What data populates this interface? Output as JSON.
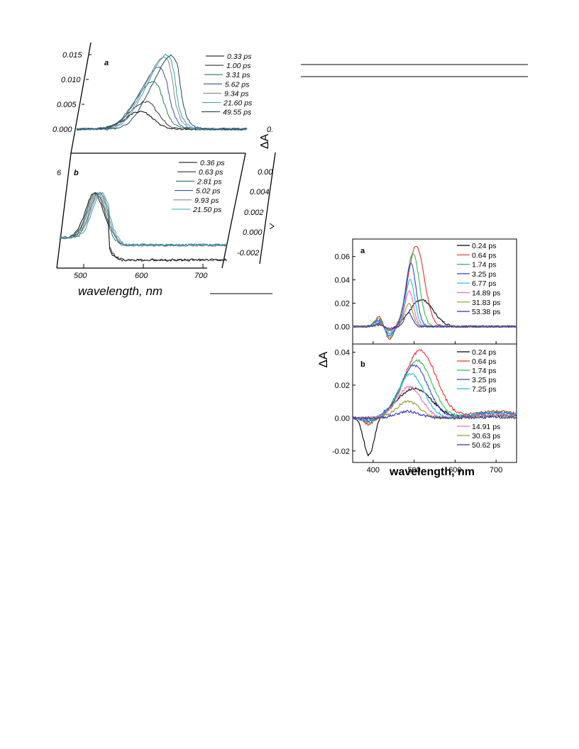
{
  "left_figure": {
    "xlabel": "wavelength, nm",
    "x_ticks": [
      "500",
      "600",
      "700"
    ],
    "panel_a": {
      "label": "a",
      "y_ticks": [
        "0.015",
        "0.010",
        "0.005",
        "0.000"
      ],
      "legend": [
        "0.33 ps",
        "1.00 ps",
        "3.31 ps",
        "5.62 ps",
        "9.34 ps",
        "21.60 ps",
        "49.55 ps"
      ]
    },
    "panel_b": {
      "label": "b",
      "y_ticks_partial": [
        "6"
      ],
      "legend": [
        "0.36 ps",
        "0.63 ps",
        "2.81 ps",
        "5.02 ps",
        "9.93 ps",
        "21.50 ps"
      ]
    },
    "right_partial": {
      "ylabel": "ΔA",
      "y_ticks": [
        "0.",
        "0.00",
        "0.004",
        "0.002",
        "0.000",
        "-0.002"
      ]
    }
  },
  "chart_data": [
    {
      "type": "line",
      "panel": "a",
      "xlabel": "wavelength, nm",
      "ylabel": "ΔA",
      "xlim": [
        350,
        750
      ],
      "ylim": [
        -0.015,
        0.075
      ],
      "x_ticks": [
        400,
        500,
        600,
        700
      ],
      "y_ticks": [
        0.0,
        0.02,
        0.04,
        0.06
      ],
      "y_tick_labels": [
        "0.00",
        "0.02",
        "0.04",
        "0.06"
      ],
      "legend_position": "top-right",
      "series": [
        {
          "name": "0.24 ps",
          "color": "#000000",
          "peak_x": 518,
          "peak_y": 0.023,
          "width": 40,
          "uv": 0.004
        },
        {
          "name": "0.64 ps",
          "color": "#e53030",
          "peak_x": 505,
          "peak_y": 0.069,
          "width": 28,
          "uv": 0.012
        },
        {
          "name": "1.74 ps",
          "color": "#33bb55",
          "peak_x": 497,
          "peak_y": 0.063,
          "width": 22,
          "uv": 0.01
        },
        {
          "name": "3.25 ps",
          "color": "#3344cc",
          "peak_x": 492,
          "peak_y": 0.054,
          "width": 18,
          "uv": 0.008
        },
        {
          "name": "6.77 ps",
          "color": "#22bbdd",
          "peak_x": 490,
          "peak_y": 0.04,
          "width": 16,
          "uv": 0.006
        },
        {
          "name": "14.89 ps",
          "color": "#ee66cc",
          "peak_x": 488,
          "peak_y": 0.03,
          "width": 15,
          "uv": 0.004
        },
        {
          "name": "31.83 ps",
          "color": "#999933",
          "peak_x": 487,
          "peak_y": 0.02,
          "width": 14,
          "uv": 0.003
        },
        {
          "name": "53.38 ps",
          "color": "#3333aa",
          "peak_x": 486,
          "peak_y": 0.012,
          "width": 13,
          "uv": 0.002
        }
      ]
    },
    {
      "type": "line",
      "panel": "b",
      "xlabel": "wavelength, nm",
      "ylabel": "ΔA",
      "xlim": [
        350,
        750
      ],
      "ylim": [
        -0.027,
        0.045
      ],
      "x_ticks": [
        400,
        500,
        600,
        700
      ],
      "x_tick_labels": [
        "400",
        "500",
        "600",
        "700"
      ],
      "y_ticks": [
        -0.02,
        0.0,
        0.02,
        0.04
      ],
      "y_tick_labels": [
        "-0.02",
        "0.00",
        "0.02",
        "0.04"
      ],
      "legend_position": "right",
      "series": [
        {
          "name": "0.24 ps",
          "color": "#000000",
          "peak_x": 500,
          "peak_y": 0.018,
          "width": 60,
          "dip": -0.023
        },
        {
          "name": "0.64 ps",
          "color": "#e53030",
          "peak_x": 515,
          "peak_y": 0.041,
          "width": 55,
          "dip": -0.004
        },
        {
          "name": "1.74 ps",
          "color": "#33bb55",
          "peak_x": 508,
          "peak_y": 0.035,
          "width": 50,
          "dip": -0.003
        },
        {
          "name": "3.25 ps",
          "color": "#3344cc",
          "peak_x": 500,
          "peak_y": 0.032,
          "width": 48,
          "dip": -0.002
        },
        {
          "name": "7.25 ps",
          "color": "#22bbdd",
          "peak_x": 492,
          "peak_y": 0.027,
          "width": 45,
          "dip": -0.001
        },
        {
          "name": "14.91 ps",
          "color": "#ee66cc",
          "peak_x": 488,
          "peak_y": 0.019,
          "width": 42,
          "dip": 0.0
        },
        {
          "name": "30.63 ps",
          "color": "#999933",
          "peak_x": 485,
          "peak_y": 0.01,
          "width": 40,
          "dip": 0.0
        },
        {
          "name": "50.62 ps",
          "color": "#3333aa",
          "peak_x": 485,
          "peak_y": 0.004,
          "width": 40,
          "dip": 0.0
        }
      ]
    }
  ],
  "right_figure": {
    "xlabel": "wavelength, nm",
    "ylabel": "ΔA",
    "panel_a_label": "a",
    "panel_b_label": "b"
  }
}
